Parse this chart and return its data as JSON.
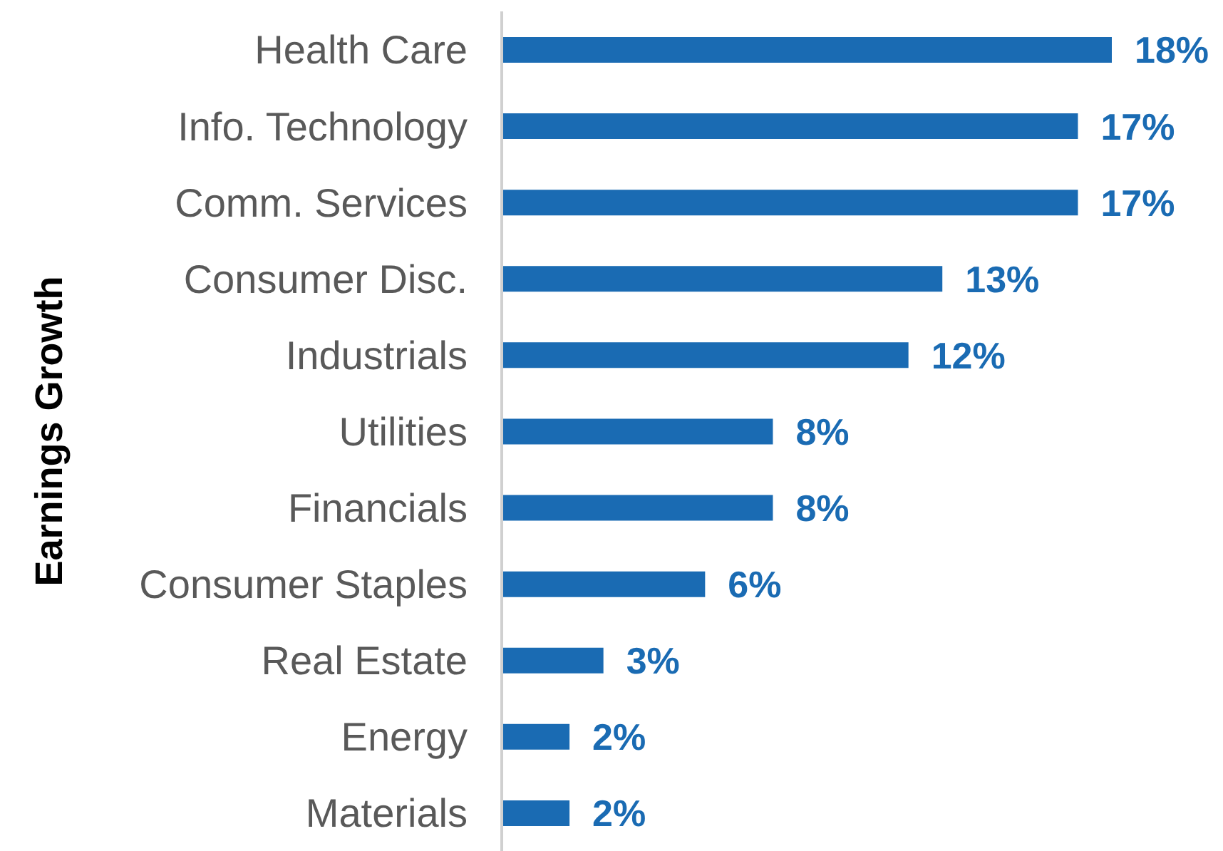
{
  "chart_data": {
    "type": "bar",
    "orientation": "horizontal",
    "ylabel": "Earnings Growth",
    "tick_labels": "y",
    "categories": [
      "Health Care",
      "Info. Technology",
      "Comm. Services",
      "Consumer Disc.",
      "Industrials",
      "Utilities",
      "Financials",
      "Consumer Staples",
      "Real Estate",
      "Energy",
      "Materials"
    ],
    "values": [
      18,
      17,
      17,
      13,
      12,
      8,
      8,
      6,
      3,
      2,
      2
    ],
    "value_labels": [
      "18%",
      "17%",
      "17%",
      "13%",
      "12%",
      "8%",
      "8%",
      "6%",
      "3%",
      "2%",
      "2%"
    ],
    "color": "#1a6bb3"
  }
}
